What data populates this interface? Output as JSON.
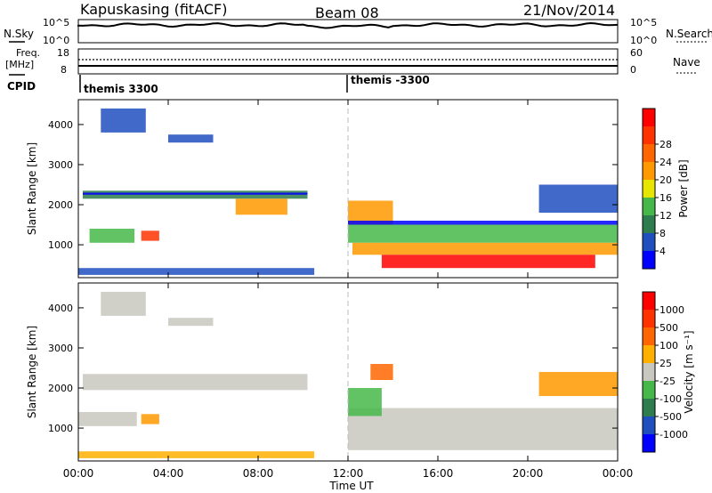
{
  "header": {
    "station": "Kapuskasing (fitACF)",
    "beam": "Beam 08",
    "date": "21/Nov/2014"
  },
  "noise_panel": {
    "left_label": "N.Sky",
    "right_label": "N.Search",
    "left_ticks": [
      "10^5",
      "10^0"
    ],
    "right_ticks": [
      "10^5",
      "10^0"
    ]
  },
  "freq_panel": {
    "left_label_1": "Freq.",
    "left_label_2": "[MHz]",
    "left_ticks": [
      "18",
      "8"
    ],
    "right_ticks": [
      "60",
      "0"
    ],
    "right_label": "Nave"
  },
  "cpid_panel": {
    "label": "CPID",
    "segments": [
      "themis 3300",
      "themis -3300"
    ]
  },
  "chart_data": [
    {
      "type": "heatmap",
      "name": "power",
      "ylabel": "Slant Range [km]",
      "ylim": [
        180,
        4620
      ],
      "yticks": [
        "1000",
        "2000",
        "3000",
        "4000"
      ],
      "xlim_hours": [
        0,
        24
      ],
      "colorbar_label": "Power [dB]",
      "colorbar_ticks": [
        "4",
        "8",
        "12",
        "16",
        "20",
        "24",
        "28"
      ],
      "colors": [
        "#0000ff",
        "#1f4fbf",
        "#2e7d4e",
        "#46b84a",
        "#e6e600",
        "#ff9900",
        "#ff6600",
        "#ff3300",
        "#ff0000"
      ],
      "regions": [
        {
          "t0": 0.2,
          "t1": 10.2,
          "r0": 2150,
          "r1": 2350,
          "color": "#2e7d4e"
        },
        {
          "t0": 0.2,
          "t1": 10.2,
          "r0": 2250,
          "r1": 2300,
          "color": "#0000ff"
        },
        {
          "t0": 7.0,
          "t1": 9.3,
          "r0": 1750,
          "r1": 2150,
          "color": "#ff9900"
        },
        {
          "t0": 0.5,
          "t1": 2.5,
          "r0": 1050,
          "r1": 1400,
          "color": "#46b84a"
        },
        {
          "t0": 2.8,
          "t1": 3.6,
          "r0": 1100,
          "r1": 1350,
          "color": "#ff3300"
        },
        {
          "t0": 1.0,
          "t1": 3.0,
          "r0": 3800,
          "r1": 4400,
          "color": "#1f4fbf"
        },
        {
          "t0": 4.0,
          "t1": 6.0,
          "r0": 3550,
          "r1": 3750,
          "color": "#1f4fbf"
        },
        {
          "t0": 0.0,
          "t1": 10.5,
          "r0": 250,
          "r1": 420,
          "color": "#1f4fbf"
        },
        {
          "t0": 12.0,
          "t1": 24.0,
          "r0": 1050,
          "r1": 1500,
          "color": "#46b84a"
        },
        {
          "t0": 12.2,
          "t1": 24.0,
          "r0": 750,
          "r1": 1050,
          "color": "#ff9900"
        },
        {
          "t0": 13.5,
          "t1": 23.0,
          "r0": 420,
          "r1": 750,
          "color": "#ff0000"
        },
        {
          "t0": 12.0,
          "t1": 14.0,
          "r0": 1500,
          "r1": 2100,
          "color": "#ff9900"
        },
        {
          "t0": 12.0,
          "t1": 24.0,
          "r0": 1500,
          "r1": 1600,
          "color": "#0000ff"
        },
        {
          "t0": 20.5,
          "t1": 24.0,
          "r0": 1800,
          "r1": 2500,
          "color": "#1f4fbf"
        }
      ]
    },
    {
      "type": "heatmap",
      "name": "velocity",
      "ylabel": "Slant Range [km]",
      "ylim": [
        180,
        4620
      ],
      "yticks": [
        "1000",
        "2000",
        "3000",
        "4000"
      ],
      "xlim_hours": [
        0,
        24
      ],
      "xlabel": "Time UT",
      "xticks": [
        "00:00",
        "04:00",
        "08:00",
        "12:00",
        "16:00",
        "20:00",
        "00:00"
      ],
      "colorbar_label": "Velocity [m s⁻¹]",
      "colorbar_ticks": [
        "1000",
        "500",
        "100",
        "25",
        "-25",
        "-100",
        "-500",
        "-1000"
      ],
      "colors": [
        "#0000ff",
        "#1f4fbf",
        "#2e7d4e",
        "#46b84a",
        "#c8c8c0",
        "#ffb000",
        "#ff6600",
        "#ff3300",
        "#ff0000"
      ],
      "regions": [
        {
          "t0": 0.2,
          "t1": 10.2,
          "r0": 1950,
          "r1": 2350,
          "color": "#c8c8c0"
        },
        {
          "t0": 1.0,
          "t1": 3.0,
          "r0": 3800,
          "r1": 4400,
          "color": "#c8c8c0"
        },
        {
          "t0": 4.0,
          "t1": 6.0,
          "r0": 3550,
          "r1": 3750,
          "color": "#c8c8c0"
        },
        {
          "t0": 0.0,
          "t1": 2.6,
          "r0": 1050,
          "r1": 1400,
          "color": "#c8c8c0"
        },
        {
          "t0": 2.8,
          "t1": 3.6,
          "r0": 1100,
          "r1": 1350,
          "color": "#ff9900"
        },
        {
          "t0": 0.0,
          "t1": 10.5,
          "r0": 250,
          "r1": 420,
          "color": "#ffb000"
        },
        {
          "t0": 12.0,
          "t1": 24.0,
          "r0": 450,
          "r1": 1500,
          "color": "#c8c8c0"
        },
        {
          "t0": 12.0,
          "t1": 13.5,
          "r0": 1300,
          "r1": 2000,
          "color": "#46b84a"
        },
        {
          "t0": 13.0,
          "t1": 14.0,
          "r0": 2200,
          "r1": 2600,
          "color": "#ff6600"
        },
        {
          "t0": 20.5,
          "t1": 24.0,
          "r0": 1800,
          "r1": 2400,
          "color": "#ff9900"
        }
      ]
    }
  ],
  "palette": {
    "dashed_line": "#bbbbbb",
    "frame": "#000000"
  }
}
